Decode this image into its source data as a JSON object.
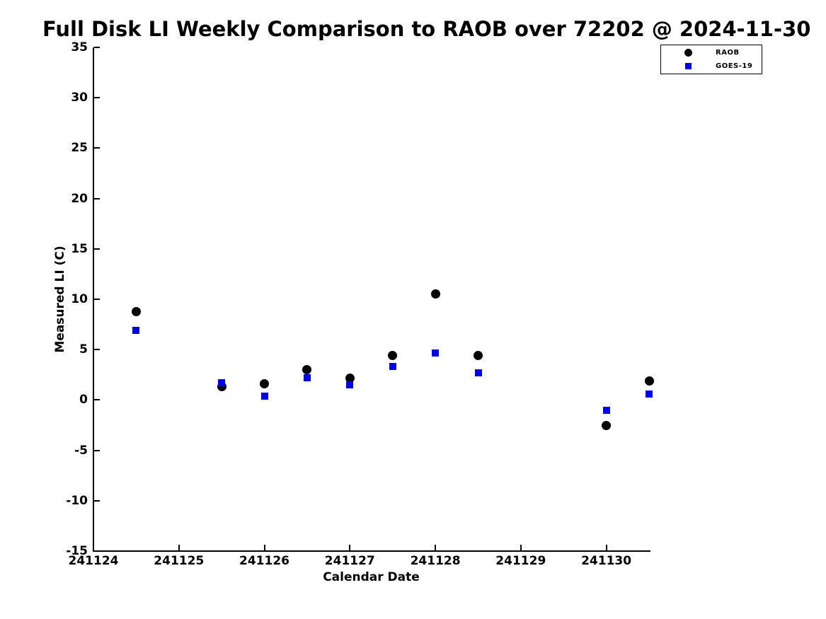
{
  "chart_data": {
    "type": "scatter",
    "title": "Full Disk LI Weekly Comparison to RAOB over 72202 @ 2024-11-30",
    "xlabel": "Calendar Date",
    "ylabel": "Measured LI (C)",
    "xlim": [
      241124,
      241130.5
    ],
    "ylim": [
      -15,
      35
    ],
    "xticks": [
      241124,
      241125,
      241126,
      241127,
      241128,
      241129,
      241130
    ],
    "yticks": [
      35,
      30,
      25,
      20,
      15,
      10,
      5,
      0,
      -5,
      -10,
      -15
    ],
    "grid": false,
    "legend_position": "top-right",
    "series": [
      {
        "name": "RAOB",
        "marker": "circle",
        "color": "#000000",
        "marker_size": 13,
        "points": [
          [
            241124.5,
            8.8
          ],
          [
            241125.5,
            1.3
          ],
          [
            241126.0,
            1.6
          ],
          [
            241126.5,
            3.0
          ],
          [
            241127.0,
            2.2
          ],
          [
            241127.5,
            4.4
          ],
          [
            241128.0,
            10.5
          ],
          [
            241128.5,
            4.4
          ],
          [
            241130.0,
            -2.5
          ],
          [
            241130.5,
            1.9
          ]
        ]
      },
      {
        "name": "GOES-19",
        "marker": "square",
        "color": "#0000ee",
        "marker_size": 10,
        "points": [
          [
            241124.5,
            6.9
          ],
          [
            241125.5,
            1.7
          ],
          [
            241126.0,
            0.4
          ],
          [
            241126.5,
            2.2
          ],
          [
            241127.0,
            1.5
          ],
          [
            241127.5,
            3.3
          ],
          [
            241128.0,
            4.7
          ],
          [
            241128.5,
            2.7
          ],
          [
            241130.0,
            -1.0
          ],
          [
            241130.5,
            0.6
          ]
        ]
      }
    ]
  },
  "colors": {
    "axis": "#000000",
    "background": "#ffffff",
    "raob": "#000000",
    "goes19": "#0000ee"
  }
}
